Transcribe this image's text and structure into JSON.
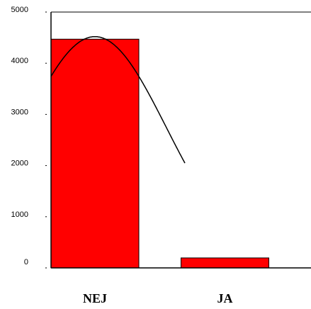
{
  "chart_data": {
    "type": "bar",
    "categories": [
      "NEJ",
      "JA"
    ],
    "values": [
      4470,
      195
    ],
    "ylim": [
      0,
      5000
    ],
    "yticks": [
      "0",
      "1000",
      "2000",
      "3000",
      "4000",
      "5000"
    ],
    "title": "",
    "xlabel": "",
    "ylabel": "",
    "grid": false,
    "legend": "none",
    "bar_color": "#ff0000",
    "bar_edge_color": "#000000",
    "curve_color": "#000000",
    "curve": {
      "type": "normal-density",
      "mean_category_index": -0.4,
      "sd_categories": 0.55,
      "peak_value": 4520
    }
  }
}
